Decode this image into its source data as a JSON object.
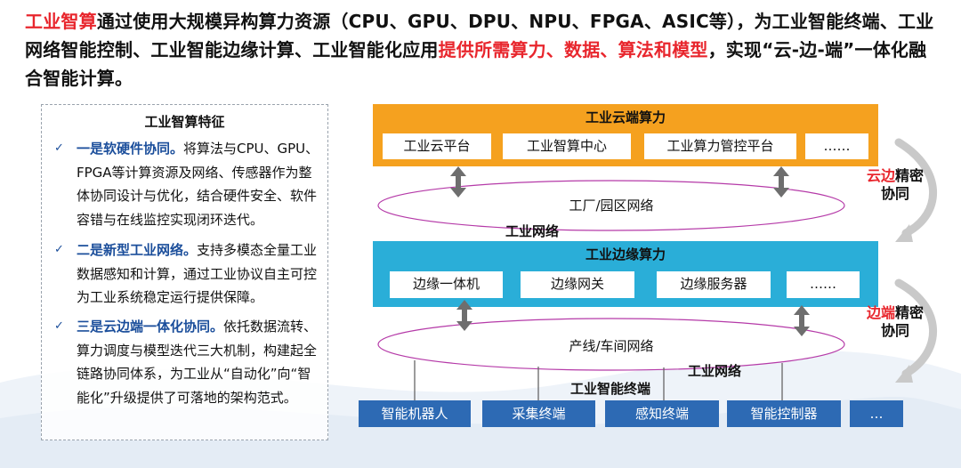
{
  "header": {
    "part1_red": "工业智算",
    "part2": "通过使用大规模异构算力资源（CPU、GPU、DPU、NPU、FPGA、ASIC等），为工业智能终端、工业网络智能控制、工业智能边缘计算、工业智能化应用",
    "part3_red": "提供所需算力、数据、算法和模型",
    "part4": "，实现“云-边-端”一体化融合智能计算。"
  },
  "features": {
    "title": "工业智算特征",
    "items": [
      {
        "highlight": "一是软硬件协同。",
        "text": "将算法与CPU、GPU、FPGA等计算资源及网络、传感器作为整体协同设计与优化，结合硬件安全、软件容错与在线监控实现闭环迭代。"
      },
      {
        "highlight": "二是新型工业网络。",
        "text": "支持多模态全量工业数据感知和计算，通过工业协议自主可控为工业系统稳定运行提供保障。"
      },
      {
        "highlight": "三是云边端一体化协同。",
        "text": "依托数据流转、算力调度与模型迭代三大机制，构建起全链路协同体系，为工业从“自动化”向“智能化”升级提供了可落地的架构范式。"
      }
    ]
  },
  "diagram": {
    "cloud": {
      "title": "工业云端算力",
      "boxes": [
        "工业云平台",
        "工业智算中心",
        "工业算力管控平台",
        "……"
      ]
    },
    "network_top": "工厂/园区网络",
    "network_label_1": "工业网络",
    "edge": {
      "title": "工业边缘算力",
      "boxes": [
        "边缘一体机",
        "边缘网关",
        "边缘服务器",
        "……"
      ]
    },
    "network_bottom": "产线/车间网络",
    "network_label_2": "工业网络",
    "terminal_title": "工业智能终端",
    "terminals": [
      "智能机器人",
      "采集终端",
      "感知终端",
      "智能控制器",
      "…"
    ],
    "collab_top": {
      "red": "云边",
      "rest1": "精密",
      "rest2": "协同"
    },
    "collab_bottom": {
      "red": "边端",
      "rest1": "精密",
      "rest2": "协同"
    }
  },
  "colors": {
    "accent_red": "#e8262d",
    "cloud_orange": "#f5a11f",
    "edge_cyan": "#2aaed8",
    "terminal_blue": "#2d6ab4",
    "feature_blue": "#1b4e9b",
    "ellipse_stroke": "#b53aa8"
  }
}
